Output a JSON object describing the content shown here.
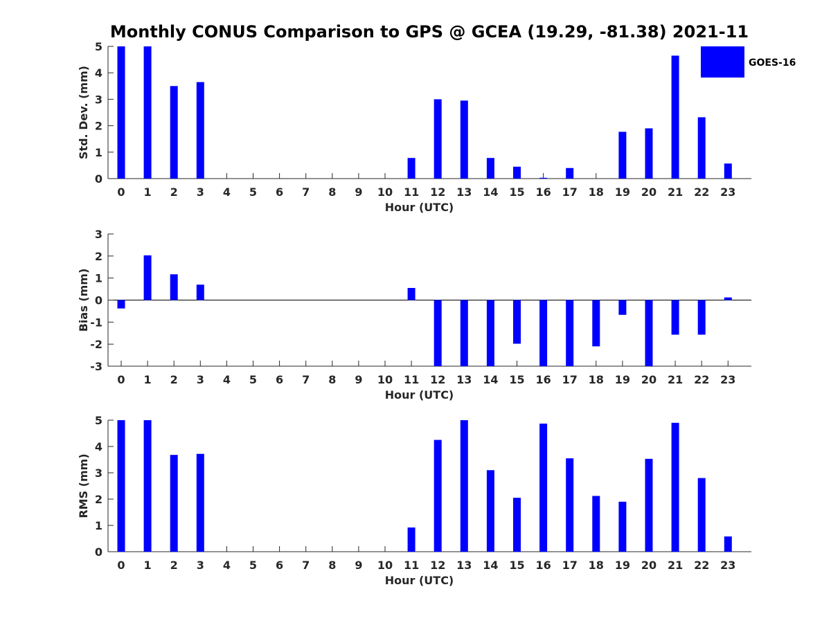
{
  "title": "Monthly CONUS Comparison to GPS @ GCEA (19.29, -81.38) 2021-11",
  "legend": {
    "label": "GOES-16",
    "placement": "top-right",
    "color": "#0000ff"
  },
  "chart_data": [
    {
      "type": "bar",
      "categories": [
        "0",
        "1",
        "2",
        "3",
        "4",
        "5",
        "6",
        "7",
        "8",
        "9",
        "10",
        "11",
        "12",
        "13",
        "14",
        "15",
        "16",
        "17",
        "18",
        "19",
        "20",
        "21",
        "22",
        "23"
      ],
      "series": [
        {
          "name": "GOES-16",
          "values": [
            5,
            5,
            3.5,
            3.65,
            null,
            null,
            null,
            null,
            null,
            null,
            null,
            0.78,
            3.0,
            2.95,
            0.78,
            0.45,
            0.03,
            0.4,
            null,
            1.77,
            1.9,
            4.65,
            2.32,
            0.57
          ]
        }
      ],
      "xlabel": "Hour (UTC)",
      "ylabel": "Std. Dev. (mm)",
      "ylim": [
        0,
        5
      ],
      "yticks": [
        0,
        1,
        2,
        3,
        4,
        5
      ],
      "grid": false
    },
    {
      "type": "bar",
      "categories": [
        "0",
        "1",
        "2",
        "3",
        "4",
        "5",
        "6",
        "7",
        "8",
        "9",
        "10",
        "11",
        "12",
        "13",
        "14",
        "15",
        "16",
        "17",
        "18",
        "19",
        "20",
        "21",
        "22",
        "23"
      ],
      "series": [
        {
          "name": "GOES-16",
          "values": [
            -0.38,
            2.03,
            1.17,
            0.7,
            null,
            null,
            null,
            null,
            null,
            null,
            null,
            0.55,
            -3,
            -3,
            -3,
            -1.98,
            -3,
            -3,
            -2.1,
            -0.67,
            -3,
            -1.57,
            -1.57,
            0.12
          ]
        }
      ],
      "xlabel": "Hour (UTC)",
      "ylabel": "Bias (mm)",
      "ylim": [
        -3,
        3
      ],
      "yticks": [
        -3,
        -2,
        -1,
        0,
        1,
        2,
        3
      ],
      "grid": false
    },
    {
      "type": "bar",
      "categories": [
        "0",
        "1",
        "2",
        "3",
        "4",
        "5",
        "6",
        "7",
        "8",
        "9",
        "10",
        "11",
        "12",
        "13",
        "14",
        "15",
        "16",
        "17",
        "18",
        "19",
        "20",
        "21",
        "22",
        "23"
      ],
      "series": [
        {
          "name": "GOES-16",
          "values": [
            5,
            5,
            3.68,
            3.72,
            null,
            null,
            null,
            null,
            null,
            null,
            null,
            0.92,
            4.25,
            5,
            3.1,
            2.05,
            4.87,
            3.55,
            2.12,
            1.9,
            3.53,
            4.9,
            2.8,
            0.58
          ]
        }
      ],
      "xlabel": "Hour (UTC)",
      "ylabel": "RMS (mm)",
      "ylim": [
        0,
        5
      ],
      "yticks": [
        0,
        1,
        2,
        3,
        4,
        5
      ],
      "grid": false
    }
  ]
}
